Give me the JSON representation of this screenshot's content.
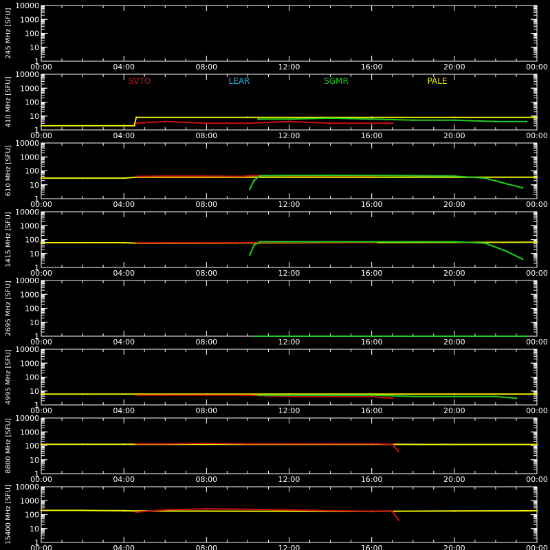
{
  "chart_data": {
    "type": "scatter",
    "ylabel_unit": "[SFU]",
    "x_ticks": [
      "00:00",
      "04:00",
      "08:00",
      "12:00",
      "16:00",
      "20:00",
      "00:00"
    ],
    "xlim_hours": [
      0,
      24
    ],
    "ylim": [
      1,
      10000
    ],
    "y_scale": "log",
    "y_ticks": [
      "10000",
      "1000",
      "100",
      "10",
      "1"
    ],
    "legend": [
      {
        "name": "SVTO",
        "color": "#cc1111"
      },
      {
        "name": "LEAR",
        "color": "#22bbdd"
      },
      {
        "name": "SGMR",
        "color": "#22cc22"
      },
      {
        "name": "PALE",
        "color": "#eeee00"
      }
    ],
    "panels": [
      {
        "label": "245 MHz",
        "series": []
      },
      {
        "label": "410 MHz",
        "series": [
          {
            "station": "PALE",
            "color": "#eeee00",
            "points": [
              [
                0,
                2
              ],
              [
                2,
                2
              ],
              [
                4.5,
                2
              ],
              [
                4.6,
                8
              ],
              [
                10,
                8
              ],
              [
                16,
                8
              ],
              [
                20,
                8
              ],
              [
                24,
                8
              ]
            ]
          },
          {
            "station": "SVTO",
            "color": "#cc1111",
            "points": [
              [
                4.6,
                3
              ],
              [
                6,
                4
              ],
              [
                8,
                3
              ],
              [
                10,
                3
              ],
              [
                12,
                4
              ],
              [
                14,
                3
              ],
              [
                16,
                3
              ],
              [
                17,
                3
              ]
            ]
          },
          {
            "station": "SGMR",
            "color": "#22cc22",
            "points": [
              [
                10.5,
                6
              ],
              [
                12,
                6
              ],
              [
                14,
                7
              ],
              [
                16,
                6
              ],
              [
                18,
                5
              ],
              [
                20,
                5
              ],
              [
                22,
                4
              ],
              [
                23.5,
                4
              ]
            ]
          }
        ]
      },
      {
        "label": "610 MHz",
        "series": [
          {
            "station": "PALE",
            "color": "#eeee00",
            "points": [
              [
                0,
                30
              ],
              [
                2,
                30
              ],
              [
                4,
                30
              ],
              [
                4.6,
                35
              ],
              [
                24,
                35
              ]
            ]
          },
          {
            "station": "SVTO",
            "color": "#cc1111",
            "points": [
              [
                4.6,
                40
              ],
              [
                6,
                42
              ],
              [
                8,
                42
              ],
              [
                9.8,
                40
              ],
              [
                10.1,
                45
              ],
              [
                12,
                45
              ],
              [
                14,
                45
              ],
              [
                16.2,
                45
              ]
            ]
          },
          {
            "station": "SGMR",
            "color": "#22cc22",
            "points": [
              [
                10.1,
                5
              ],
              [
                10.3,
                20
              ],
              [
                10.6,
                45
              ],
              [
                12,
                47
              ],
              [
                14,
                48
              ],
              [
                16,
                47
              ],
              [
                18,
                45
              ],
              [
                20,
                42
              ],
              [
                21.5,
                30
              ],
              [
                22.5,
                12
              ],
              [
                23.3,
                6
              ]
            ]
          }
        ]
      },
      {
        "label": "1415 MHz",
        "series": [
          {
            "station": "PALE",
            "color": "#eeee00",
            "points": [
              [
                0,
                60
              ],
              [
                2,
                60
              ],
              [
                4,
                60
              ],
              [
                4.6,
                55
              ],
              [
                24,
                65
              ]
            ]
          },
          {
            "station": "SVTO",
            "color": "#cc1111",
            "points": [
              [
                4.6,
                58
              ],
              [
                6,
                60
              ],
              [
                8,
                60
              ],
              [
                9.8,
                60
              ],
              [
                10.1,
                62
              ],
              [
                12,
                62
              ],
              [
                14,
                62
              ],
              [
                16.2,
                62
              ]
            ]
          },
          {
            "station": "SGMR",
            "color": "#22cc22",
            "points": [
              [
                10.1,
                8
              ],
              [
                10.3,
                40
              ],
              [
                10.6,
                70
              ],
              [
                12,
                70
              ],
              [
                14,
                70
              ],
              [
                16,
                70
              ],
              [
                18,
                70
              ],
              [
                20,
                70
              ],
              [
                21.5,
                55
              ],
              [
                22.5,
                15
              ],
              [
                23.3,
                4
              ]
            ]
          }
        ]
      },
      {
        "label": "2695 MHz",
        "series": [
          {
            "station": "SGMR",
            "color": "#22cc22",
            "points": [
              [
                10.3,
                1
              ],
              [
                12,
                1
              ],
              [
                14,
                1
              ],
              [
                16,
                1
              ],
              [
                18,
                1
              ],
              [
                20,
                1
              ],
              [
                22,
                1
              ],
              [
                23.5,
                1
              ]
            ]
          }
        ]
      },
      {
        "label": "4995 MHz",
        "series": [
          {
            "station": "PALE",
            "color": "#eeee00",
            "points": [
              [
                0,
                6
              ],
              [
                2,
                6
              ],
              [
                4.6,
                6
              ],
              [
                8,
                6
              ],
              [
                12,
                6
              ],
              [
                16,
                6
              ],
              [
                20,
                6
              ],
              [
                24,
                6
              ]
            ]
          },
          {
            "station": "SVTO",
            "color": "#cc1111",
            "points": [
              [
                4.6,
                5
              ],
              [
                6,
                5
              ],
              [
                8,
                5
              ],
              [
                10,
                5
              ],
              [
                12,
                4
              ],
              [
                14,
                4
              ],
              [
                16,
                4
              ],
              [
                17,
                3
              ]
            ]
          },
          {
            "station": "SGMR",
            "color": "#22cc22",
            "points": [
              [
                10.5,
                5
              ],
              [
                12,
                5
              ],
              [
                14,
                5
              ],
              [
                16,
                5
              ],
              [
                18,
                4
              ],
              [
                20,
                4
              ],
              [
                22,
                4
              ],
              [
                23,
                3
              ]
            ]
          }
        ]
      },
      {
        "label": "8800 MHz",
        "series": [
          {
            "station": "PALE",
            "color": "#eeee00",
            "points": [
              [
                0,
                130
              ],
              [
                2,
                130
              ],
              [
                4,
                130
              ],
              [
                4.6,
                130
              ],
              [
                8,
                130
              ],
              [
                12,
                130
              ],
              [
                16,
                130
              ],
              [
                20,
                125
              ],
              [
                24,
                125
              ]
            ]
          },
          {
            "station": "SVTO",
            "color": "#cc1111",
            "points": [
              [
                4.6,
                140
              ],
              [
                6,
                140
              ],
              [
                8,
                150
              ],
              [
                10,
                140
              ],
              [
                12,
                140
              ],
              [
                14,
                140
              ],
              [
                16.2,
                140
              ],
              [
                17,
                130
              ],
              [
                17.3,
                40
              ]
            ]
          }
        ]
      },
      {
        "label": "15400 MHz",
        "series": [
          {
            "station": "PALE",
            "color": "#eeee00",
            "points": [
              [
                0,
                200
              ],
              [
                2,
                200
              ],
              [
                4,
                190
              ],
              [
                4.6,
                180
              ],
              [
                16,
                170
              ],
              [
                20,
                180
              ],
              [
                24,
                190
              ]
            ]
          },
          {
            "station": "SVTO",
            "color": "#cc1111",
            "points": [
              [
                4.6,
                150
              ],
              [
                6,
                220
              ],
              [
                8,
                260
              ],
              [
                10,
                240
              ],
              [
                12,
                220
              ],
              [
                14,
                190
              ],
              [
                16.2,
                170
              ],
              [
                17,
                170
              ],
              [
                17.3,
                40
              ]
            ]
          }
        ]
      }
    ]
  }
}
